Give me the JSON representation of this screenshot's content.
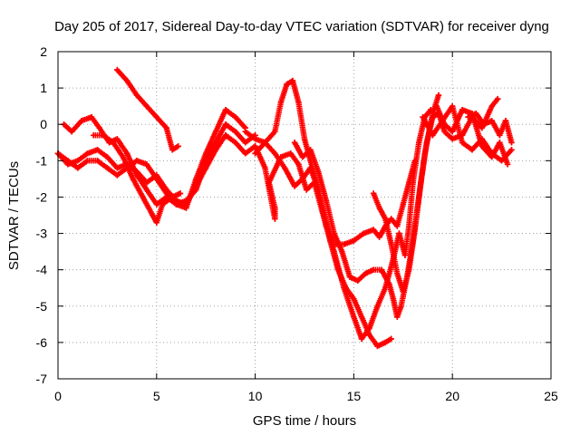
{
  "chart_data": {
    "type": "scatter",
    "title": "Day 205 of 2017, Sidereal Day-to-day VTEC variation (SDTVAR) for receiver dyng",
    "xlabel": "GPS time / hours",
    "ylabel": "SDTVAR / TECUs",
    "xlim": [
      0,
      25
    ],
    "ylim": [
      -7,
      2
    ],
    "xticks": [
      0,
      5,
      10,
      15,
      20,
      25
    ],
    "yticks": [
      -7,
      -6,
      -5,
      -4,
      -3,
      -2,
      -1,
      0,
      1,
      2
    ],
    "grid": true,
    "marker": "+",
    "color": "#ff0000",
    "series": [
      {
        "values": [
          [
            0.0,
            -0.8
          ],
          [
            0.5,
            -1.1
          ],
          [
            1.0,
            -1.0
          ],
          [
            1.5,
            -0.8
          ],
          [
            2.0,
            -0.7
          ],
          [
            2.5,
            -0.9
          ],
          [
            3.0,
            -1.2
          ],
          [
            3.5,
            -1.1
          ],
          [
            4.0,
            -1.3
          ],
          [
            4.5,
            -1.6
          ],
          [
            5.0,
            -1.4
          ],
          [
            5.5,
            -1.8
          ],
          [
            6.0,
            -2.1
          ],
          [
            6.5,
            -2.2
          ],
          [
            7.0,
            -1.7
          ],
          [
            7.5,
            -1.2
          ],
          [
            8.0,
            -0.7
          ],
          [
            8.5,
            -0.3
          ],
          [
            9.0,
            -0.5
          ],
          [
            9.5,
            -0.8
          ],
          [
            10.0,
            -0.6
          ]
        ]
      },
      {
        "values": [
          [
            0.0,
            -0.8
          ],
          [
            0.5,
            -1.0
          ],
          [
            1.0,
            -1.2
          ],
          [
            1.5,
            -1.0
          ],
          [
            2.0,
            -1.0
          ],
          [
            2.5,
            -1.2
          ],
          [
            3.0,
            -1.4
          ],
          [
            3.5,
            -1.2
          ],
          [
            4.0,
            -1.0
          ],
          [
            4.5,
            -1.1
          ],
          [
            5.0,
            -1.5
          ],
          [
            5.5,
            -1.9
          ],
          [
            6.0,
            -2.2
          ],
          [
            6.5,
            -2.1
          ],
          [
            7.0,
            -1.8
          ],
          [
            7.5,
            -1.0
          ],
          [
            8.0,
            -0.5
          ],
          [
            8.5,
            0.0
          ],
          [
            9.0,
            -0.2
          ],
          [
            9.5,
            -0.5
          ],
          [
            10.0,
            -0.3
          ]
        ]
      },
      {
        "values": [
          [
            0.3,
            0.0
          ],
          [
            0.7,
            -0.2
          ],
          [
            1.2,
            0.1
          ],
          [
            1.7,
            0.2
          ],
          [
            2.1,
            -0.1
          ],
          [
            2.6,
            -0.5
          ],
          [
            3.0,
            -0.4
          ],
          [
            3.5,
            -0.8
          ],
          [
            4.0,
            -1.4
          ],
          [
            4.5,
            -1.8
          ],
          [
            5.0,
            -2.2
          ],
          [
            5.5,
            -2.0
          ],
          [
            6.0,
            -2.2
          ],
          [
            6.5,
            -2.3
          ],
          [
            7.0,
            -1.5
          ],
          [
            7.5,
            -0.8
          ],
          [
            8.0,
            -0.2
          ],
          [
            8.5,
            0.4
          ],
          [
            9.0,
            0.2
          ],
          [
            9.5,
            -0.1
          ]
        ]
      },
      {
        "values": [
          [
            1.8,
            -0.3
          ],
          [
            2.3,
            -0.3
          ],
          [
            2.8,
            -0.5
          ],
          [
            3.3,
            -0.9
          ],
          [
            3.8,
            -1.5
          ],
          [
            4.3,
            -2.0
          ],
          [
            4.8,
            -2.5
          ],
          [
            5.0,
            -2.7
          ],
          [
            5.3,
            -2.2
          ],
          [
            5.8,
            -2.0
          ],
          [
            6.2,
            -1.9
          ]
        ]
      },
      {
        "values": [
          [
            3.0,
            1.5
          ],
          [
            3.5,
            1.2
          ],
          [
            4.0,
            0.8
          ],
          [
            4.5,
            0.5
          ],
          [
            5.0,
            0.2
          ],
          [
            5.5,
            -0.1
          ],
          [
            5.8,
            -0.7
          ],
          [
            6.1,
            -0.6
          ]
        ]
      },
      {
        "values": [
          [
            10.0,
            -0.8
          ],
          [
            10.5,
            -0.5
          ],
          [
            11.0,
            -0.2
          ],
          [
            11.3,
            0.6
          ],
          [
            11.6,
            1.1
          ],
          [
            11.9,
            1.2
          ],
          [
            12.2,
            0.6
          ],
          [
            12.5,
            -0.4
          ],
          [
            12.8,
            -1.0
          ],
          [
            13.2,
            -1.8
          ],
          [
            13.6,
            -2.7
          ],
          [
            14.0,
            -3.3
          ],
          [
            14.5,
            -3.3
          ],
          [
            15.0,
            -3.2
          ],
          [
            15.5,
            -3.0
          ],
          [
            16.0,
            -2.9
          ],
          [
            16.3,
            -3.1
          ],
          [
            16.6,
            -2.8
          ],
          [
            16.9,
            -2.6
          ],
          [
            17.2,
            -2.8
          ],
          [
            17.5,
            -2.2
          ],
          [
            17.8,
            -1.6
          ],
          [
            18.1,
            -1.0
          ]
        ]
      },
      {
        "values": [
          [
            10.0,
            -0.6
          ],
          [
            10.5,
            -1.2
          ],
          [
            11.0,
            -2.6
          ],
          [
            11.0,
            -2.3
          ],
          [
            10.7,
            -1.6
          ],
          [
            11.3,
            -0.9
          ],
          [
            11.8,
            -0.8
          ],
          [
            12.2,
            -1.1
          ],
          [
            12.6,
            -1.8
          ],
          [
            13.0,
            -1.6
          ],
          [
            13.4,
            -2.4
          ],
          [
            13.8,
            -3.2
          ],
          [
            14.2,
            -4.0
          ],
          [
            14.6,
            -4.5
          ],
          [
            15.0,
            -4.8
          ],
          [
            15.4,
            -5.3
          ],
          [
            15.8,
            -5.8
          ],
          [
            16.2,
            -6.1
          ],
          [
            16.6,
            -6.0
          ],
          [
            16.9,
            -5.9
          ]
        ]
      },
      {
        "values": [
          [
            9.5,
            -0.2
          ],
          [
            10.0,
            -0.4
          ],
          [
            10.5,
            -0.5
          ],
          [
            11.0,
            -0.8
          ],
          [
            11.5,
            -1.2
          ],
          [
            12.0,
            -1.7
          ],
          [
            12.4,
            -1.5
          ],
          [
            12.8,
            -1.2
          ],
          [
            13.2,
            -1.8
          ],
          [
            13.6,
            -2.8
          ],
          [
            14.0,
            -3.5
          ],
          [
            14.5,
            -4.5
          ],
          [
            15.0,
            -5.3
          ],
          [
            15.4,
            -5.9
          ],
          [
            15.8,
            -5.6
          ],
          [
            16.2,
            -5.0
          ],
          [
            16.6,
            -4.5
          ],
          [
            17.0,
            -3.7
          ],
          [
            17.3,
            -3.0
          ],
          [
            17.6,
            -3.6
          ],
          [
            17.8,
            -2.8
          ],
          [
            18.0,
            -1.6
          ],
          [
            18.3,
            -0.5
          ],
          [
            18.6,
            0.2
          ],
          [
            18.9,
            0.4
          ]
        ]
      },
      {
        "values": [
          [
            12.0,
            -0.5
          ],
          [
            12.4,
            -0.9
          ],
          [
            12.8,
            -0.7
          ],
          [
            13.2,
            -1.3
          ],
          [
            13.6,
            -2.1
          ],
          [
            14.0,
            -3.0
          ],
          [
            14.4,
            -3.5
          ],
          [
            14.8,
            -4.2
          ],
          [
            15.2,
            -4.3
          ],
          [
            15.6,
            -4.1
          ],
          [
            16.0,
            -4.0
          ],
          [
            16.4,
            -4.0
          ],
          [
            16.8,
            -4.4
          ],
          [
            17.0,
            -4.8
          ],
          [
            17.2,
            -5.3
          ],
          [
            17.4,
            -5.0
          ],
          [
            17.7,
            -4.2
          ],
          [
            18.0,
            -3.2
          ],
          [
            18.3,
            -2.0
          ],
          [
            18.6,
            -0.8
          ],
          [
            19.0,
            0.3
          ],
          [
            19.3,
            0.8
          ]
        ]
      },
      {
        "values": [
          [
            16.0,
            -1.9
          ],
          [
            16.3,
            -2.3
          ],
          [
            16.6,
            -2.6
          ],
          [
            16.9,
            -3.3
          ],
          [
            17.2,
            -4.1
          ],
          [
            17.5,
            -4.6
          ],
          [
            17.8,
            -4.0
          ],
          [
            18.1,
            -2.9
          ],
          [
            18.4,
            -1.6
          ],
          [
            18.7,
            -0.5
          ],
          [
            19.0,
            0.2
          ],
          [
            19.3,
            0.3
          ],
          [
            19.6,
            -0.2
          ],
          [
            20.0,
            -0.4
          ],
          [
            20.5,
            -0.3
          ],
          [
            21.0,
            0.2
          ],
          [
            21.5,
            -0.1
          ],
          [
            22.0,
            0.5
          ],
          [
            22.3,
            0.7
          ]
        ]
      },
      {
        "values": [
          [
            18.5,
            0.2
          ],
          [
            19.0,
            -0.3
          ],
          [
            19.5,
            0.1
          ],
          [
            20.0,
            0.5
          ],
          [
            20.5,
            -0.5
          ],
          [
            21.0,
            -0.7
          ],
          [
            21.5,
            -0.4
          ],
          [
            22.0,
            -0.8
          ],
          [
            22.5,
            -1.0
          ],
          [
            23.0,
            -0.7
          ]
        ]
      },
      {
        "values": [
          [
            19.2,
            0.5
          ],
          [
            19.6,
            0.0
          ],
          [
            20.0,
            -0.2
          ],
          [
            20.5,
            0.4
          ],
          [
            21.0,
            0.3
          ],
          [
            21.5,
            -0.6
          ],
          [
            22.0,
            -0.9
          ],
          [
            22.4,
            -0.5
          ],
          [
            22.8,
            -1.1
          ]
        ]
      },
      {
        "values": [
          [
            20.8,
            0.2
          ],
          [
            21.2,
            0.3
          ],
          [
            21.6,
            0.0
          ],
          [
            22.0,
            0.1
          ],
          [
            22.4,
            -0.3
          ],
          [
            22.7,
            0.1
          ],
          [
            23.0,
            -0.5
          ]
        ]
      }
    ]
  }
}
